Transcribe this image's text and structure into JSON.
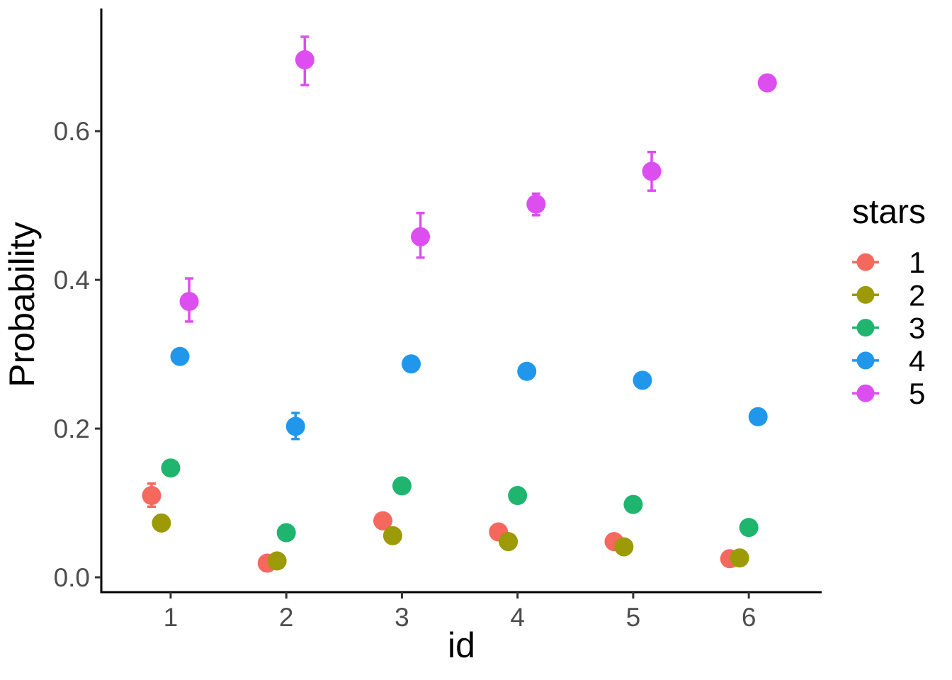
{
  "chart_data": {
    "type": "scatter",
    "title": "",
    "xlabel": "id",
    "ylabel": "Probability",
    "x_ticks": [
      1,
      2,
      3,
      4,
      5,
      6
    ],
    "y_ticks": [
      0.0,
      0.2,
      0.4,
      0.6
    ],
    "xlim": [
      0.4,
      6.63
    ],
    "ylim": [
      -0.02,
      0.765
    ],
    "grid": false,
    "point_style": "point-with-error-bars",
    "legend": {
      "title": "stars",
      "position": "right"
    },
    "dodge_offsets": [
      -0.165,
      -0.08,
      0,
      0.08,
      0.16
    ],
    "colors": {
      "axis_line": "#000000",
      "tick_mark": "#333333",
      "tick_label": "#4d4d4d",
      "axis_title": "#000000",
      "background": "#ffffff"
    },
    "series": [
      {
        "name": "1",
        "color": "#F4685E",
        "points": [
          {
            "x": 1,
            "y": 0.11,
            "lo": 0.095,
            "hi": 0.126
          },
          {
            "x": 2,
            "y": 0.019
          },
          {
            "x": 3,
            "y": 0.076
          },
          {
            "x": 4,
            "y": 0.061
          },
          {
            "x": 5,
            "y": 0.048
          },
          {
            "x": 6,
            "y": 0.025
          }
        ]
      },
      {
        "name": "2",
        "color": "#9C9A06",
        "points": [
          {
            "x": 1,
            "y": 0.073
          },
          {
            "x": 2,
            "y": 0.022
          },
          {
            "x": 3,
            "y": 0.056
          },
          {
            "x": 4,
            "y": 0.048
          },
          {
            "x": 5,
            "y": 0.041
          },
          {
            "x": 6,
            "y": 0.026
          }
        ]
      },
      {
        "name": "3",
        "color": "#1FB56F",
        "points": [
          {
            "x": 1,
            "y": 0.147
          },
          {
            "x": 2,
            "y": 0.06
          },
          {
            "x": 3,
            "y": 0.123
          },
          {
            "x": 4,
            "y": 0.11
          },
          {
            "x": 5,
            "y": 0.098
          },
          {
            "x": 6,
            "y": 0.067
          }
        ]
      },
      {
        "name": "4",
        "color": "#2197EC",
        "points": [
          {
            "x": 1,
            "y": 0.297
          },
          {
            "x": 2,
            "y": 0.203,
            "lo": 0.186,
            "hi": 0.221
          },
          {
            "x": 3,
            "y": 0.287
          },
          {
            "x": 4,
            "y": 0.277
          },
          {
            "x": 5,
            "y": 0.265
          },
          {
            "x": 6,
            "y": 0.216
          }
        ]
      },
      {
        "name": "5",
        "color": "#DC4EF0",
        "points": [
          {
            "x": 1,
            "y": 0.371,
            "lo": 0.344,
            "hi": 0.402
          },
          {
            "x": 2,
            "y": 0.696,
            "lo": 0.662,
            "hi": 0.727
          },
          {
            "x": 3,
            "y": 0.458,
            "lo": 0.43,
            "hi": 0.49
          },
          {
            "x": 4,
            "y": 0.502,
            "lo": 0.487,
            "hi": 0.516
          },
          {
            "x": 5,
            "y": 0.546,
            "lo": 0.52,
            "hi": 0.572
          },
          {
            "x": 6,
            "y": 0.665
          }
        ]
      }
    ]
  }
}
